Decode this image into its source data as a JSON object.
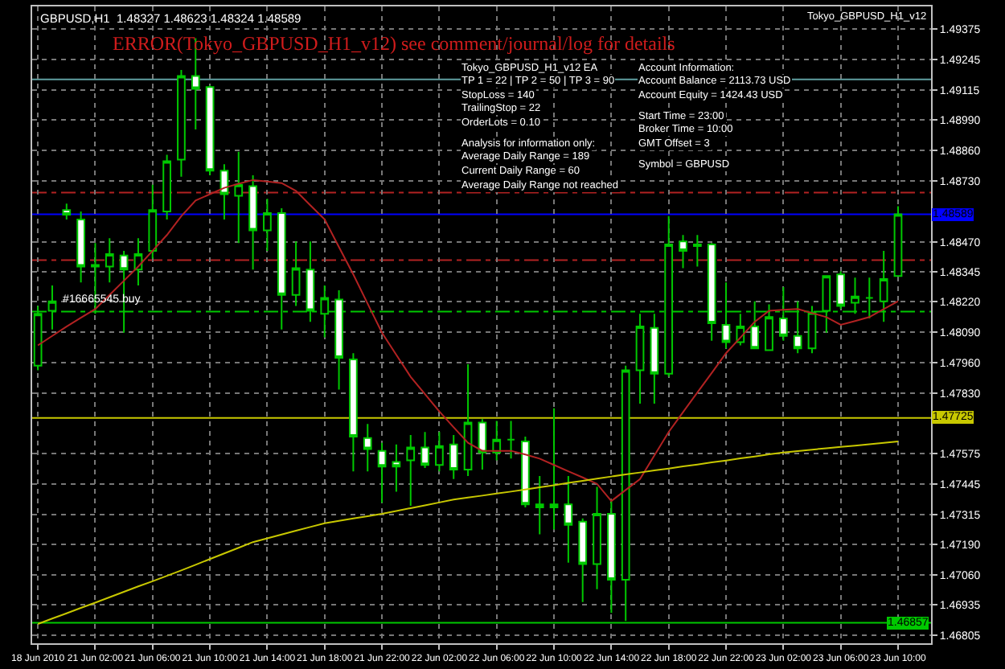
{
  "chart_data": {
    "type": "candlestick",
    "title": "GBPUSD,H1  1.48327 1.48623 1.48324 1.48589",
    "color": "#00c800",
    "categories": [
      "18 Jun 2010",
      null,
      null,
      null,
      "21 Jun 02:00",
      null,
      null,
      null,
      "21 Jun 06:00",
      null,
      null,
      null,
      "21 Jun 10:00",
      null,
      null,
      null,
      "21 Jun 14:00",
      null,
      null,
      null,
      "21 Jun 18:00",
      null,
      null,
      null,
      "21 Jun 22:00",
      null,
      null,
      null,
      "22 Jun 02:00",
      null,
      null,
      null,
      "22 Jun 06:00",
      null,
      null,
      null,
      "22 Jun 10:00",
      null,
      null,
      null,
      "22 Jun 14:00",
      null,
      null,
      null,
      "22 Jun 18:00",
      null,
      null,
      null,
      "22 Jun 22:00",
      null,
      null,
      null,
      "23 Jun 02:00",
      null,
      null,
      null,
      "23 Jun 06:00",
      null,
      null,
      null,
      "23 Jun 10:00"
    ],
    "ohlc": [
      [
        1.47947,
        1.482,
        1.47927,
        1.48167
      ],
      [
        1.4818,
        1.48287,
        1.481,
        1.4822
      ],
      [
        1.48607,
        1.48634,
        1.48567,
        1.48587
      ],
      [
        1.48567,
        1.48601,
        1.483,
        1.48367
      ],
      [
        1.48367,
        1.48467,
        1.48167,
        1.48374
      ],
      [
        1.48367,
        1.48487,
        1.483,
        1.4842
      ],
      [
        1.48414,
        1.48434,
        1.48087,
        1.48354
      ],
      [
        1.48354,
        1.48487,
        1.48287,
        1.4842
      ],
      [
        1.48434,
        1.48714,
        1.484,
        1.48607
      ],
      [
        1.48601,
        1.48841,
        1.48567,
        1.48814
      ],
      [
        1.48821,
        1.49201,
        1.48748,
        1.49175
      ],
      [
        1.49175,
        1.49335,
        1.48948,
        1.49121
      ],
      [
        1.49128,
        1.49135,
        1.48754,
        1.48774
      ],
      [
        1.48774,
        1.48801,
        1.48567,
        1.48674
      ],
      [
        1.48667,
        1.48854,
        1.48467,
        1.48714
      ],
      [
        1.48708,
        1.48754,
        1.48354,
        1.48521
      ],
      [
        1.48521,
        1.48654,
        1.48434,
        1.48594
      ],
      [
        1.48594,
        1.48614,
        1.481,
        1.48247
      ],
      [
        1.48247,
        1.48474,
        1.482,
        1.4836
      ],
      [
        1.48354,
        1.48474,
        1.48133,
        1.4818
      ],
      [
        1.48167,
        1.48287,
        1.48067,
        1.48234
      ],
      [
        1.48227,
        1.48267,
        1.47846,
        1.4798
      ],
      [
        1.47973,
        1.48,
        1.47499,
        1.47646
      ],
      [
        1.4764,
        1.477,
        1.47499,
        1.47593
      ],
      [
        1.47586,
        1.4762,
        1.47366,
        1.47519
      ],
      [
        1.47539,
        1.47613,
        1.47413,
        1.47519
      ],
      [
        1.47546,
        1.47653,
        1.47353,
        1.476
      ],
      [
        1.476,
        1.47666,
        1.47513,
        1.47526
      ],
      [
        1.47526,
        1.47666,
        1.47499,
        1.47606
      ],
      [
        1.47613,
        1.47653,
        1.47466,
        1.47506
      ],
      [
        1.47506,
        1.47953,
        1.47479,
        1.47706
      ],
      [
        1.47706,
        1.4772,
        1.47506,
        1.47579
      ],
      [
        1.47579,
        1.47713,
        1.47546,
        1.47633
      ],
      [
        1.47633,
        1.47713,
        1.47553,
        1.47633
      ],
      [
        1.47626,
        1.47646,
        1.47346,
        1.47359
      ],
      [
        1.47359,
        1.47479,
        1.47232,
        1.47346
      ],
      [
        1.47346,
        1.47766,
        1.47252,
        1.47359
      ],
      [
        1.47359,
        1.47479,
        1.47112,
        1.47272
      ],
      [
        1.47286,
        1.47299,
        1.46945,
        1.47106
      ],
      [
        1.47106,
        1.47433,
        1.46999,
        1.47319
      ],
      [
        1.47319,
        1.47379,
        1.46899,
        1.47039
      ],
      [
        1.47039,
        1.47947,
        1.46865,
        1.47927
      ],
      [
        1.47927,
        1.48167,
        1.47786,
        1.48113
      ],
      [
        1.48107,
        1.48167,
        1.47786,
        1.47913
      ],
      [
        1.47913,
        1.48581,
        1.479,
        1.48461
      ],
      [
        1.48474,
        1.48501,
        1.4836,
        1.48434
      ],
      [
        1.48454,
        1.48501,
        1.48367,
        1.48461
      ],
      [
        1.48461,
        1.48467,
        1.48053,
        1.48127
      ],
      [
        1.4812,
        1.483,
        1.4802,
        1.48047
      ],
      [
        1.48047,
        1.48167,
        1.48033,
        1.48113
      ],
      [
        1.48113,
        1.4822,
        1.4802,
        1.4802
      ],
      [
        1.48013,
        1.48207,
        1.48013,
        1.48153
      ],
      [
        1.48147,
        1.4828,
        1.48053,
        1.48073
      ],
      [
        1.48073,
        1.4822,
        1.48,
        1.4802
      ],
      [
        1.4802,
        1.482,
        1.48,
        1.48173
      ],
      [
        1.4818,
        1.48327,
        1.48087,
        1.48327
      ],
      [
        1.48334,
        1.48347,
        1.48187,
        1.482
      ],
      [
        1.48214,
        1.4832,
        1.48167,
        1.4824
      ],
      [
        1.48234,
        1.4832,
        1.48147,
        1.48234
      ],
      [
        1.4822,
        1.48434,
        1.48133,
        1.48314
      ],
      [
        1.48327,
        1.48623,
        1.48324,
        1.48589
      ]
    ],
    "series": [
      {
        "type": "line",
        "color": "#b22222",
        "values": [
          1.48033,
          1.48073,
          1.48113,
          1.4815,
          1.48187,
          1.48247,
          1.48307,
          1.48367,
          1.48434,
          1.48501,
          1.48581,
          1.48647,
          1.48674,
          1.48701,
          1.48718,
          1.48734,
          1.48728,
          1.48721,
          1.48688,
          1.48627,
          1.48567,
          1.4845,
          1.48334,
          1.4821,
          1.48087,
          1.47993,
          1.479,
          1.47826,
          1.47753,
          1.47686,
          1.4762,
          1.47586,
          1.47586,
          1.47586,
          1.4757,
          1.47553,
          1.47526,
          1.47499,
          1.47473,
          1.47446,
          1.47373,
          1.4742,
          1.47466,
          1.47566,
          1.47666,
          1.4775,
          1.47833,
          1.47916,
          1.48,
          1.48066,
          1.48133,
          1.4818,
          1.48184,
          1.48187,
          1.4817,
          1.48153,
          1.4812,
          1.48136,
          1.48153,
          1.48187,
          1.4822
        ]
      },
      {
        "type": "line",
        "color": "#c8c800",
        "values": [
          1.46852,
          1.46875,
          1.46897,
          1.4692,
          1.46942,
          1.46965,
          1.46988,
          1.47011,
          1.47033,
          1.47056,
          1.47079,
          1.47103,
          1.47127,
          1.47151,
          1.47175,
          1.47199,
          1.47215,
          1.47231,
          1.47247,
          1.47263,
          1.47279,
          1.47289,
          1.47299,
          1.47309,
          1.47319,
          1.47331,
          1.47343,
          1.47355,
          1.47367,
          1.47379,
          1.47388,
          1.47396,
          1.47405,
          1.47413,
          1.47422,
          1.47431,
          1.4744,
          1.4745,
          1.47459,
          1.47468,
          1.47477,
          1.47486,
          1.47494,
          1.47503,
          1.47511,
          1.4752,
          1.47528,
          1.47537,
          1.47545,
          1.47554,
          1.47562,
          1.47571,
          1.47579,
          1.47585,
          1.47591,
          1.47597,
          1.47603,
          1.47608,
          1.47614,
          1.4762,
          1.47626
        ]
      }
    ],
    "ylim": [
      1.4677,
      1.4947
    ],
    "yticks": [
      1.49375,
      1.49245,
      1.49115,
      {
        "value": 1.4899,
        "label": "1.48990"
      },
      {
        "value": 1.4886,
        "label": "1.48860"
      },
      {
        "value": 1.4873,
        "label": "1.48730"
      },
      {
        "value": 1.4847,
        "label": "1.48470"
      },
      1.48345,
      {
        "value": 1.4822,
        "label": "1.48220"
      },
      {
        "value": 1.4809,
        "label": "1.48090"
      },
      {
        "value": 1.4796,
        "label": "1.47960"
      },
      {
        "value": 1.4783,
        "label": "1.47830"
      },
      1.47575,
      1.47445,
      1.47315,
      {
        "value": 1.4719,
        "label": "1.47190"
      },
      {
        "value": 1.4706,
        "label": "1.47060"
      },
      1.46935,
      1.46805
    ],
    "grid": true,
    "ref_lines": [
      {
        "axis": "y",
        "value": 1.49161,
        "color": "#5f9ea0",
        "line_style": "solid"
      },
      {
        "axis": "y",
        "value": 1.48681,
        "color": "#b22222",
        "line_style": "dashed"
      },
      {
        "axis": "y",
        "value": 1.48589,
        "color": "#0000ff",
        "line_style": "solid",
        "label": "1.48589"
      },
      {
        "axis": "y",
        "value": 1.48394,
        "color": "#b22222",
        "line_style": "dashed"
      },
      {
        "axis": "y",
        "value": 1.48176,
        "color": "#00c800",
        "line_style": "dashed"
      },
      {
        "axis": "y",
        "value": 1.47725,
        "color": "#c8c800",
        "line_style": "solid",
        "label": "1.47725"
      },
      {
        "axis": "y",
        "value": 1.46857,
        "color": "#00c800",
        "line_style": "solid",
        "label": "1.46857"
      }
    ],
    "annotations": [
      "Tokyo_GBPUSD_H1_v12 EA",
      "TP 1 = 22 | TP 2 = 50 | TP 3 = 90",
      "StopLoss = 140",
      "TrailingStop = 22",
      "OrderLots = 0.10",
      "Analysis for information only:",
      "Average Daily Range = 189",
      "Current Daily Range = 60",
      "Average Daily Range not reached",
      "Account Information:",
      "Account Balance = 2113.73 USD",
      "Account Equity = 1424.43 USD",
      "Start Time = 23:00",
      "Broker Time = 10:00",
      "GMT Offset = 3",
      "Symbol = GBPUSD",
      "ERROR(Tokyo_GBPUSD_H1_v12) see comment/journal/log for details",
      "Tokyo_GBPUSD_H1_v12",
      "#16665545 buy"
    ]
  }
}
